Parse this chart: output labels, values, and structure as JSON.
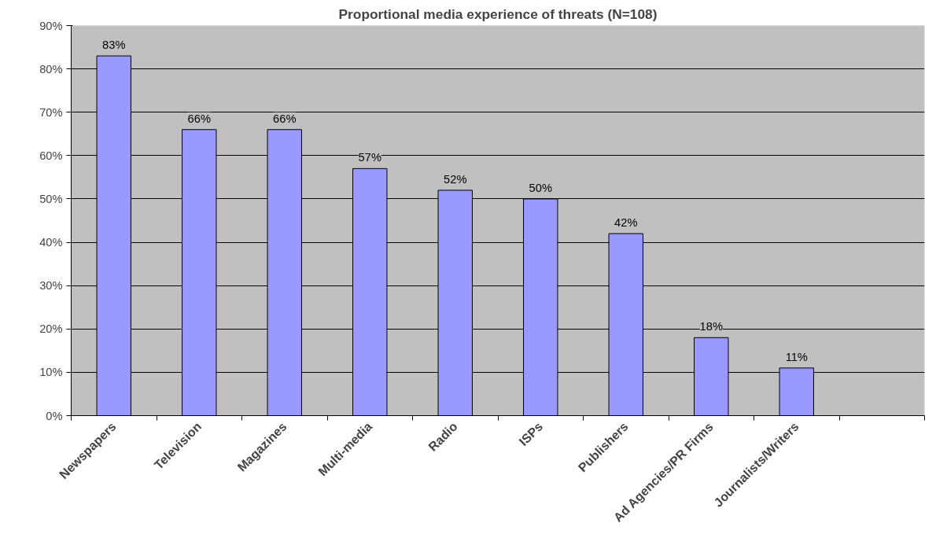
{
  "chart_data": {
    "type": "bar",
    "title": "Proportional media experience of threats (N=108)",
    "categories": [
      "Newspapers",
      "Television",
      "Magazines",
      "Multi-media",
      "Radio",
      "ISPs",
      "Publishers",
      "Ad Agencies/PR Firms",
      "Journalists/Writers",
      null
    ],
    "values": [
      83,
      66,
      66,
      57,
      52,
      50,
      42,
      18,
      11,
      null
    ],
    "value_labels": [
      "83%",
      "66%",
      "66%",
      "57%",
      "52%",
      "50%",
      "42%",
      "18%",
      "11%",
      null
    ],
    "color": "#9999ff",
    "ylim": [
      0,
      90
    ],
    "yticks": [
      {
        "value": 0,
        "label": "0%"
      },
      {
        "value": 10,
        "label": "10%"
      },
      {
        "value": 20,
        "label": "20%"
      },
      {
        "value": 30,
        "label": "30%"
      },
      {
        "value": 40,
        "label": "40%"
      },
      {
        "value": 50,
        "label": "50%"
      },
      {
        "value": 60,
        "label": "60%"
      },
      {
        "value": 70,
        "label": "70%"
      },
      {
        "value": 80,
        "label": "80%"
      },
      {
        "value": 90,
        "label": "90%"
      }
    ],
    "grid": "y"
  }
}
